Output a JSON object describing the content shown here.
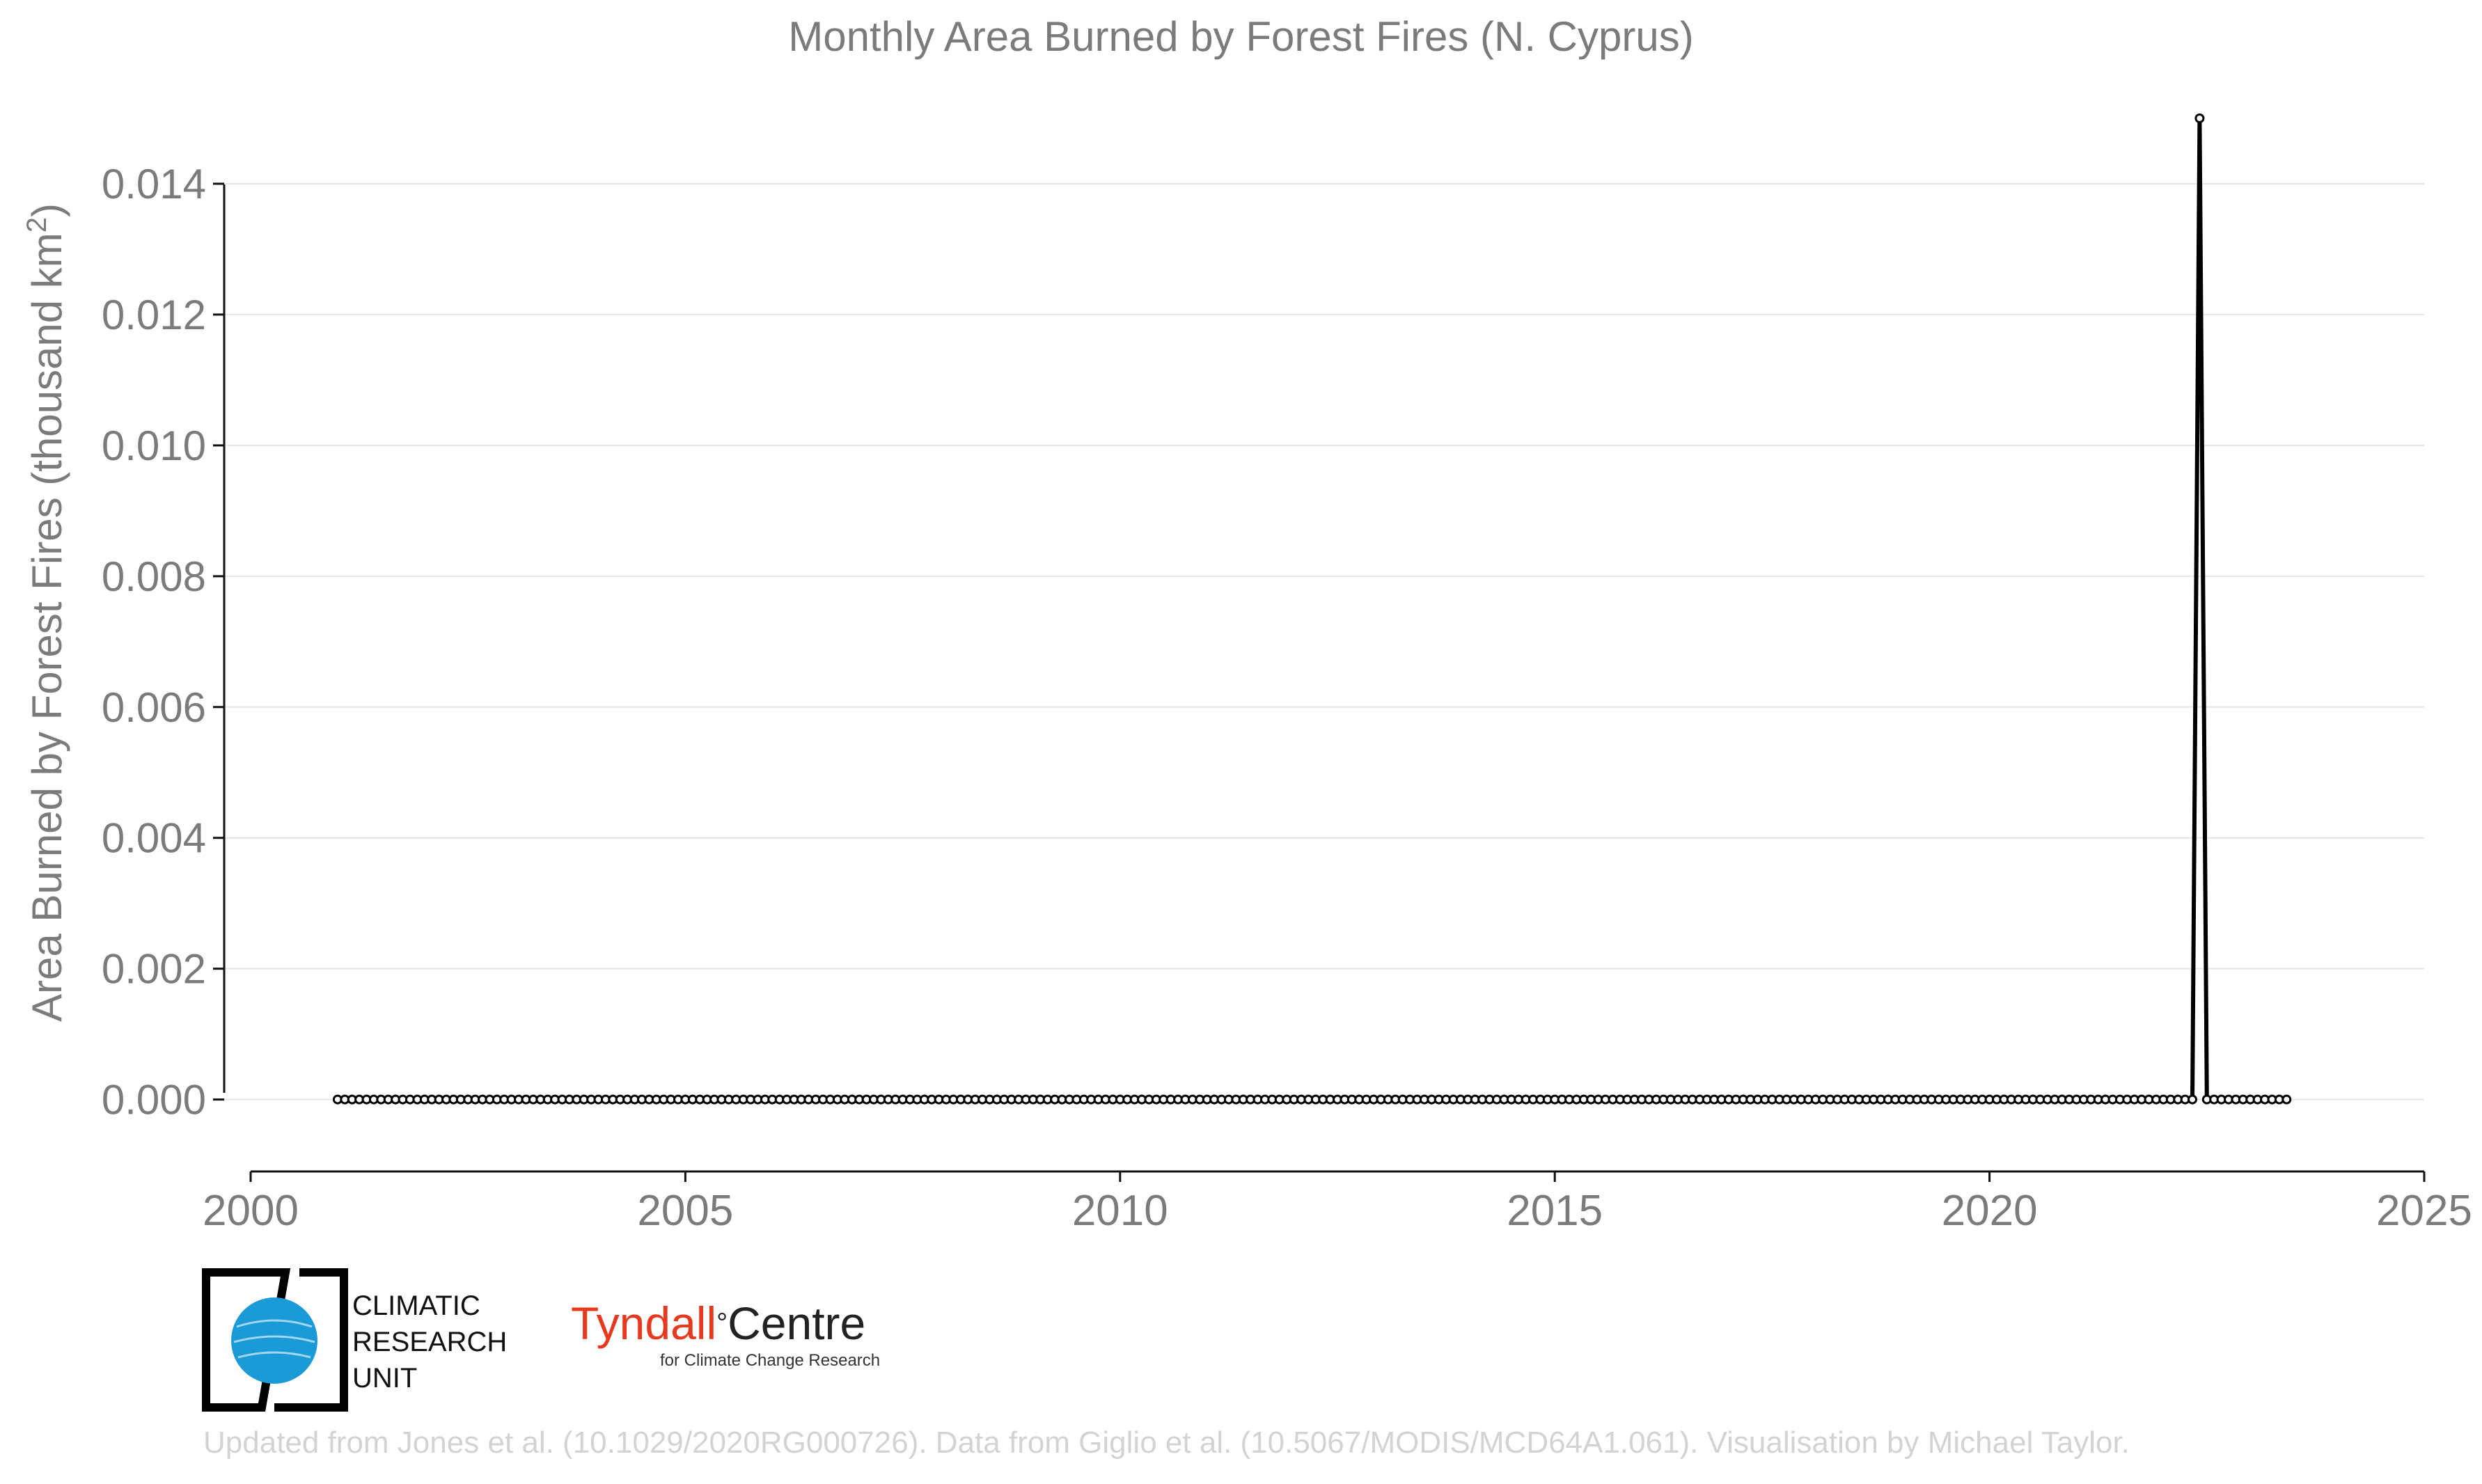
{
  "chart_data": {
    "type": "line",
    "title": "Monthly Area Burned by Forest Fires (N. Cyprus)",
    "ylabel": "Area Burned by Forest Fires (thousand km",
    "ylabel_superscript": "2",
    "ylabel_close": ")",
    "xlabel": "",
    "xlim": [
      2000,
      2025
    ],
    "ylim": [
      -0.0011,
      0.015
    ],
    "x_ticks": [
      "2000",
      "2005",
      "2010",
      "2015",
      "2020",
      "2025"
    ],
    "y_ticks": [
      "0.000",
      "0.002",
      "0.004",
      "0.006",
      "0.008",
      "0.010",
      "0.012",
      "0.014"
    ],
    "grid": "horizontal",
    "legend": "none",
    "line_color": "#000000",
    "marker": "open-circle",
    "series": [
      {
        "x_start": "2001-01",
        "x_end": "2023-06",
        "frequency": "monthly",
        "default_value": 0.0,
        "nonzero": [
          {
            "x": "2022-06",
            "y": 0.015
          }
        ]
      }
    ]
  },
  "footer": "Updated from Jones et al. (10.1029/2020RG000726). Data from Giglio et al. (10.5067/MODIS/MCD64A1.061). Visualisation by Michael Taylor.",
  "logos": {
    "cru": {
      "line1": "CLIMATIC",
      "line2": "RESEARCH",
      "line3": "UNIT"
    },
    "tyndall": {
      "name_red": "Tyndall",
      "degree": "°",
      "name_dark": "Centre",
      "subtitle": "for Climate Change Research"
    }
  },
  "colors": {
    "text_grey": "#7b7b7b",
    "grid": "#e6e6e6",
    "footer": "#d3d3d3",
    "cru_blue": "#1a9ad6",
    "tyndall_red": "#e8391f"
  }
}
